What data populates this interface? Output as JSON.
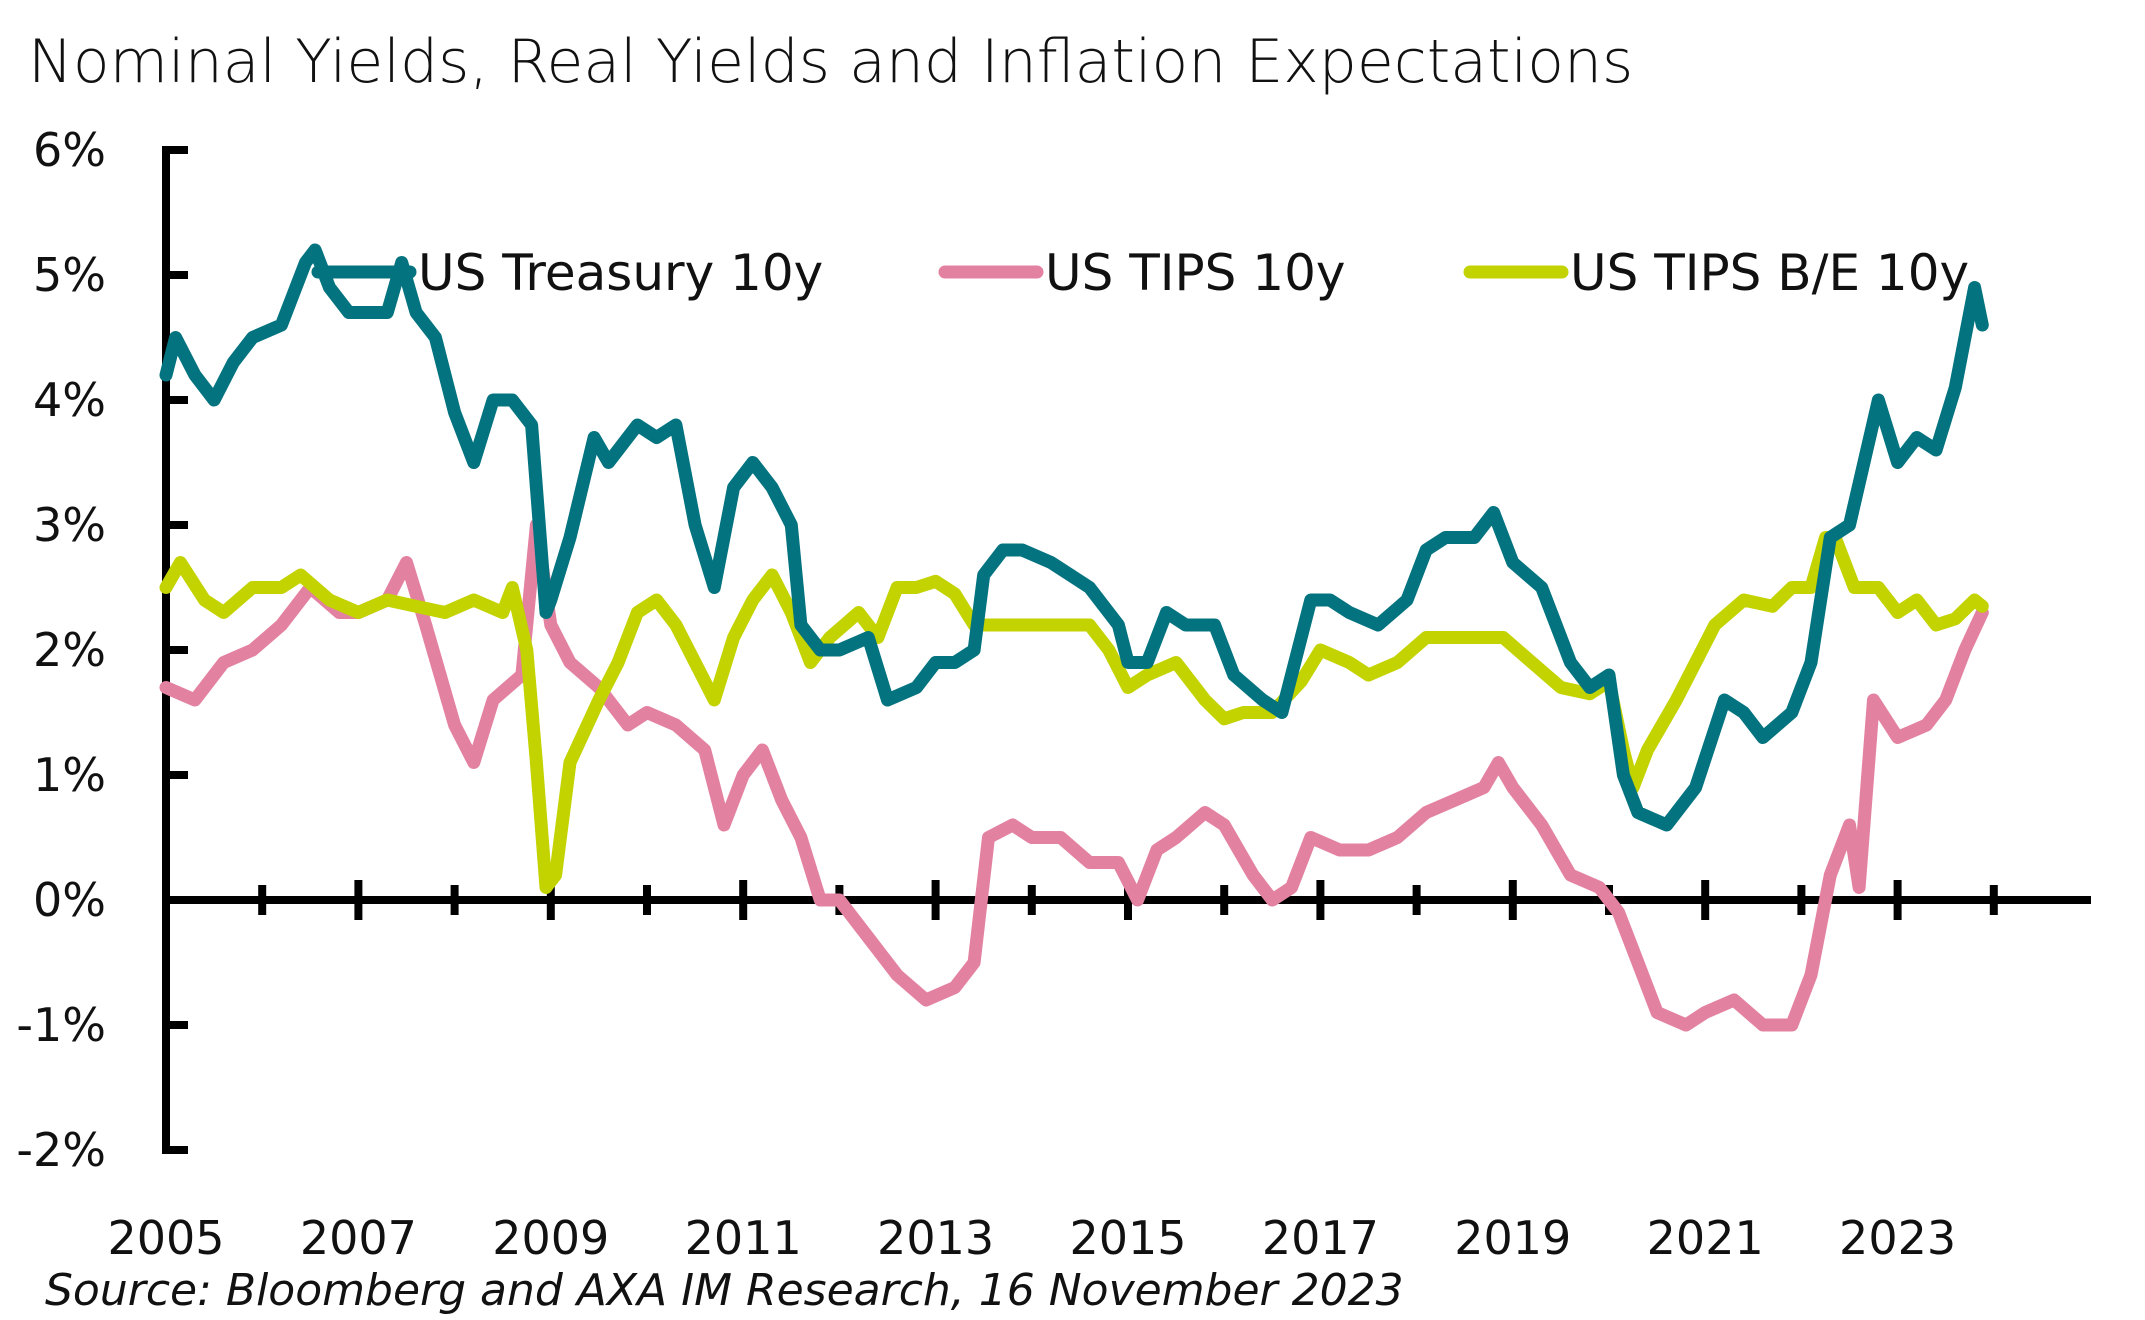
{
  "chart_data": {
    "type": "line",
    "title": "Nominal Yields, Real Yields and Inflation Expectations",
    "source": "Source: Bloomberg and AXA IM Research, 16 November 2023",
    "xlabel": "",
    "ylabel": "",
    "xlim": [
      2005,
      2025
    ],
    "ylim": [
      -2,
      6
    ],
    "x_ticks": [
      2005,
      2007,
      2009,
      2011,
      2013,
      2015,
      2017,
      2019,
      2021,
      2023
    ],
    "x_tick_labels": [
      "2005",
      "2007",
      "2009",
      "2011",
      "2013",
      "2015",
      "2017",
      "2019",
      "2021",
      "2023"
    ],
    "y_ticks": [
      -2,
      -1,
      0,
      1,
      2,
      3,
      4,
      5,
      6
    ],
    "y_tick_labels": [
      "-2%",
      "-1%",
      "0%",
      "1%",
      "2%",
      "3%",
      "4%",
      "5%",
      "6%"
    ],
    "grid": false,
    "legend_position": "top",
    "series": [
      {
        "name": "US Treasury 10y",
        "color": "#03737F",
        "x": [
          2005.0,
          2005.1,
          2005.3,
          2005.5,
          2005.7,
          2005.9,
          2006.2,
          2006.45,
          2006.55,
          2006.7,
          2006.9,
          2007.1,
          2007.3,
          2007.45,
          2007.6,
          2007.8,
          2008.0,
          2008.2,
          2008.4,
          2008.6,
          2008.8,
          2008.95,
          2009.0,
          2009.2,
          2009.45,
          2009.6,
          2009.9,
          2010.1,
          2010.3,
          2010.5,
          2010.7,
          2010.9,
          2011.1,
          2011.3,
          2011.5,
          2011.6,
          2011.8,
          2012.0,
          2012.3,
          2012.5,
          2012.8,
          2013.0,
          2013.2,
          2013.4,
          2013.5,
          2013.7,
          2013.9,
          2014.2,
          2014.4,
          2014.6,
          2014.9,
          2015.0,
          2015.2,
          2015.4,
          2015.6,
          2015.9,
          2016.1,
          2016.4,
          2016.6,
          2016.9,
          2017.1,
          2017.3,
          2017.6,
          2017.9,
          2018.1,
          2018.3,
          2018.6,
          2018.8,
          2019.0,
          2019.3,
          2019.6,
          2019.8,
          2020.0,
          2020.15,
          2020.3,
          2020.6,
          2020.9,
          2021.2,
          2021.4,
          2021.6,
          2021.9,
          2022.1,
          2022.3,
          2022.5,
          2022.8,
          2023.0,
          2023.2,
          2023.4,
          2023.6,
          2023.8,
          2023.88
        ],
        "values": [
          4.2,
          4.5,
          4.2,
          4.0,
          4.3,
          4.5,
          4.6,
          5.1,
          5.2,
          4.9,
          4.7,
          4.7,
          4.7,
          5.1,
          4.7,
          4.5,
          3.9,
          3.5,
          4.0,
          4.0,
          3.8,
          2.3,
          2.4,
          2.9,
          3.7,
          3.5,
          3.8,
          3.7,
          3.8,
          3.0,
          2.5,
          3.3,
          3.5,
          3.3,
          3.0,
          2.2,
          2.0,
          2.0,
          2.1,
          1.6,
          1.7,
          1.9,
          1.9,
          2.0,
          2.6,
          2.8,
          2.8,
          2.7,
          2.6,
          2.5,
          2.2,
          1.9,
          1.9,
          2.3,
          2.2,
          2.2,
          1.8,
          1.6,
          1.5,
          2.4,
          2.4,
          2.3,
          2.2,
          2.4,
          2.8,
          2.9,
          2.9,
          3.1,
          2.7,
          2.5,
          1.9,
          1.7,
          1.8,
          1.0,
          0.7,
          0.6,
          0.9,
          1.6,
          1.5,
          1.3,
          1.5,
          1.9,
          2.9,
          3.0,
          4.0,
          3.5,
          3.7,
          3.6,
          4.1,
          4.9,
          4.6
        ]
      },
      {
        "name": "US TIPS 10y",
        "color": "#E381A1",
        "x": [
          2005.0,
          2005.3,
          2005.6,
          2005.9,
          2006.2,
          2006.5,
          2006.8,
          2007.0,
          2007.3,
          2007.5,
          2007.7,
          2008.0,
          2008.2,
          2008.4,
          2008.7,
          2008.85,
          2009.0,
          2009.2,
          2009.5,
          2009.8,
          2010.0,
          2010.3,
          2010.6,
          2010.8,
          2011.0,
          2011.2,
          2011.4,
          2011.6,
          2011.8,
          2012.0,
          2012.3,
          2012.6,
          2012.9,
          2013.2,
          2013.4,
          2013.55,
          2013.8,
          2014.0,
          2014.3,
          2014.6,
          2014.9,
          2015.1,
          2015.3,
          2015.5,
          2015.8,
          2016.0,
          2016.3,
          2016.5,
          2016.7,
          2016.9,
          2017.2,
          2017.5,
          2017.8,
          2018.1,
          2018.4,
          2018.7,
          2018.85,
          2019.0,
          2019.3,
          2019.6,
          2019.9,
          2020.1,
          2020.3,
          2020.5,
          2020.8,
          2021.0,
          2021.3,
          2021.6,
          2021.9,
          2022.1,
          2022.3,
          2022.5,
          2022.6,
          2022.75,
          2023.0,
          2023.3,
          2023.5,
          2023.7,
          2023.88
        ],
        "values": [
          1.7,
          1.6,
          1.9,
          2.0,
          2.2,
          2.5,
          2.3,
          2.3,
          2.4,
          2.7,
          2.2,
          1.4,
          1.1,
          1.6,
          1.8,
          3.0,
          2.2,
          1.9,
          1.7,
          1.4,
          1.5,
          1.4,
          1.2,
          0.6,
          1.0,
          1.2,
          0.8,
          0.5,
          0.0,
          0.0,
          -0.3,
          -0.6,
          -0.8,
          -0.7,
          -0.5,
          0.5,
          0.6,
          0.5,
          0.5,
          0.3,
          0.3,
          0.0,
          0.4,
          0.5,
          0.7,
          0.6,
          0.2,
          0.0,
          0.1,
          0.5,
          0.4,
          0.4,
          0.5,
          0.7,
          0.8,
          0.9,
          1.1,
          0.9,
          0.6,
          0.2,
          0.1,
          -0.1,
          -0.5,
          -0.9,
          -1.0,
          -0.9,
          -0.8,
          -1.0,
          -1.0,
          -0.6,
          0.2,
          0.6,
          0.1,
          1.6,
          1.3,
          1.4,
          1.6,
          2.0,
          2.3
        ]
      },
      {
        "name": "US TIPS B/E 10y",
        "color": "#C3D300",
        "x": [
          2005.0,
          2005.15,
          2005.4,
          2005.6,
          2005.9,
          2006.2,
          2006.4,
          2006.7,
          2007.0,
          2007.3,
          2007.6,
          2007.9,
          2008.2,
          2008.5,
          2008.6,
          2008.75,
          2008.85,
          2008.95,
          2009.05,
          2009.2,
          2009.5,
          2009.7,
          2009.9,
          2010.1,
          2010.3,
          2010.5,
          2010.7,
          2010.9,
          2011.1,
          2011.3,
          2011.5,
          2011.7,
          2011.9,
          2012.2,
          2012.4,
          2012.6,
          2012.8,
          2013.0,
          2013.2,
          2013.4,
          2013.7,
          2014.0,
          2014.3,
          2014.6,
          2014.8,
          2015.0,
          2015.2,
          2015.5,
          2015.8,
          2016.0,
          2016.2,
          2016.5,
          2016.8,
          2017.0,
          2017.3,
          2017.5,
          2017.8,
          2018.1,
          2018.4,
          2018.7,
          2018.9,
          2019.2,
          2019.5,
          2019.8,
          2020.0,
          2020.15,
          2020.25,
          2020.4,
          2020.7,
          2020.9,
          2021.1,
          2021.4,
          2021.7,
          2021.9,
          2022.1,
          2022.25,
          2022.35,
          2022.55,
          2022.8,
          2023.0,
          2023.2,
          2023.4,
          2023.6,
          2023.8,
          2023.88
        ],
        "values": [
          2.5,
          2.7,
          2.4,
          2.3,
          2.5,
          2.5,
          2.6,
          2.4,
          2.3,
          2.4,
          2.35,
          2.3,
          2.4,
          2.3,
          2.5,
          2.0,
          1.1,
          0.1,
          0.2,
          1.1,
          1.6,
          1.9,
          2.3,
          2.4,
          2.2,
          1.9,
          1.6,
          2.1,
          2.4,
          2.6,
          2.3,
          1.9,
          2.1,
          2.3,
          2.1,
          2.5,
          2.5,
          2.55,
          2.45,
          2.2,
          2.2,
          2.2,
          2.2,
          2.2,
          2.0,
          1.7,
          1.8,
          1.9,
          1.6,
          1.45,
          1.5,
          1.5,
          1.75,
          2.0,
          1.9,
          1.8,
          1.9,
          2.1,
          2.1,
          2.1,
          2.1,
          1.9,
          1.7,
          1.65,
          1.75,
          1.2,
          0.9,
          1.2,
          1.6,
          1.9,
          2.2,
          2.4,
          2.35,
          2.5,
          2.5,
          2.9,
          2.9,
          2.5,
          2.5,
          2.3,
          2.4,
          2.2,
          2.25,
          2.4,
          2.35
        ]
      }
    ]
  }
}
